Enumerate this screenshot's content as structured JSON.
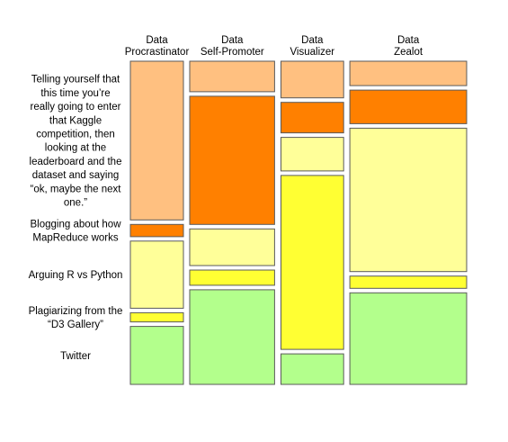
{
  "chart_data": {
    "type": "mosaic",
    "title": "",
    "columns": [
      {
        "name_lines": [
          "Data",
          "Procrastinator"
        ],
        "width": 1.0
      },
      {
        "name_lines": [
          "Data",
          "Self-Promoter"
        ],
        "width": 1.6
      },
      {
        "name_lines": [
          "Data",
          "Visualizer"
        ],
        "width": 1.18
      },
      {
        "name_lines": [
          "Data",
          "Zealot"
        ],
        "width": 2.2
      }
    ],
    "rows": [
      {
        "name": "Telling yourself that this time you're really going to enter that Kaggle competition, then looking at the leaderboard and the dataset and saying “ok, maybe the next one.”",
        "label_lines": [
          "Telling yourself that",
          "this time you’re",
          "really going to enter",
          "that Kaggle",
          "competition, then",
          "looking at the",
          "leaderboard and the",
          "dataset and saying",
          "“ok, maybe the  next",
          "one.”"
        ],
        "color": "#ffc080"
      },
      {
        "name": "Blogging about how MapReduce works",
        "label_lines": [
          "Blogging about how",
          "MapReduce works"
        ],
        "color": "#ff8000"
      },
      {
        "name": "Arguing R vs Python",
        "label_lines": [
          "Arguing R vs Python"
        ],
        "color": "#ffff99"
      },
      {
        "name": "Plagiarizing from the “D3 Gallery”",
        "label_lines": [
          "Plagiarizing from the",
          "“D3 Gallery”"
        ],
        "color": "#ffff33"
      },
      {
        "name": "Twitter",
        "label_lines": [
          "Twitter"
        ],
        "color": "#b3ff8c"
      }
    ],
    "proportions": [
      [
        0.52,
        0.04,
        0.22,
        0.03,
        0.19
      ],
      [
        0.1,
        0.42,
        0.12,
        0.05,
        0.31
      ],
      [
        0.12,
        0.1,
        0.11,
        0.57,
        0.1
      ],
      [
        0.08,
        0.11,
        0.47,
        0.04,
        0.3
      ]
    ]
  }
}
